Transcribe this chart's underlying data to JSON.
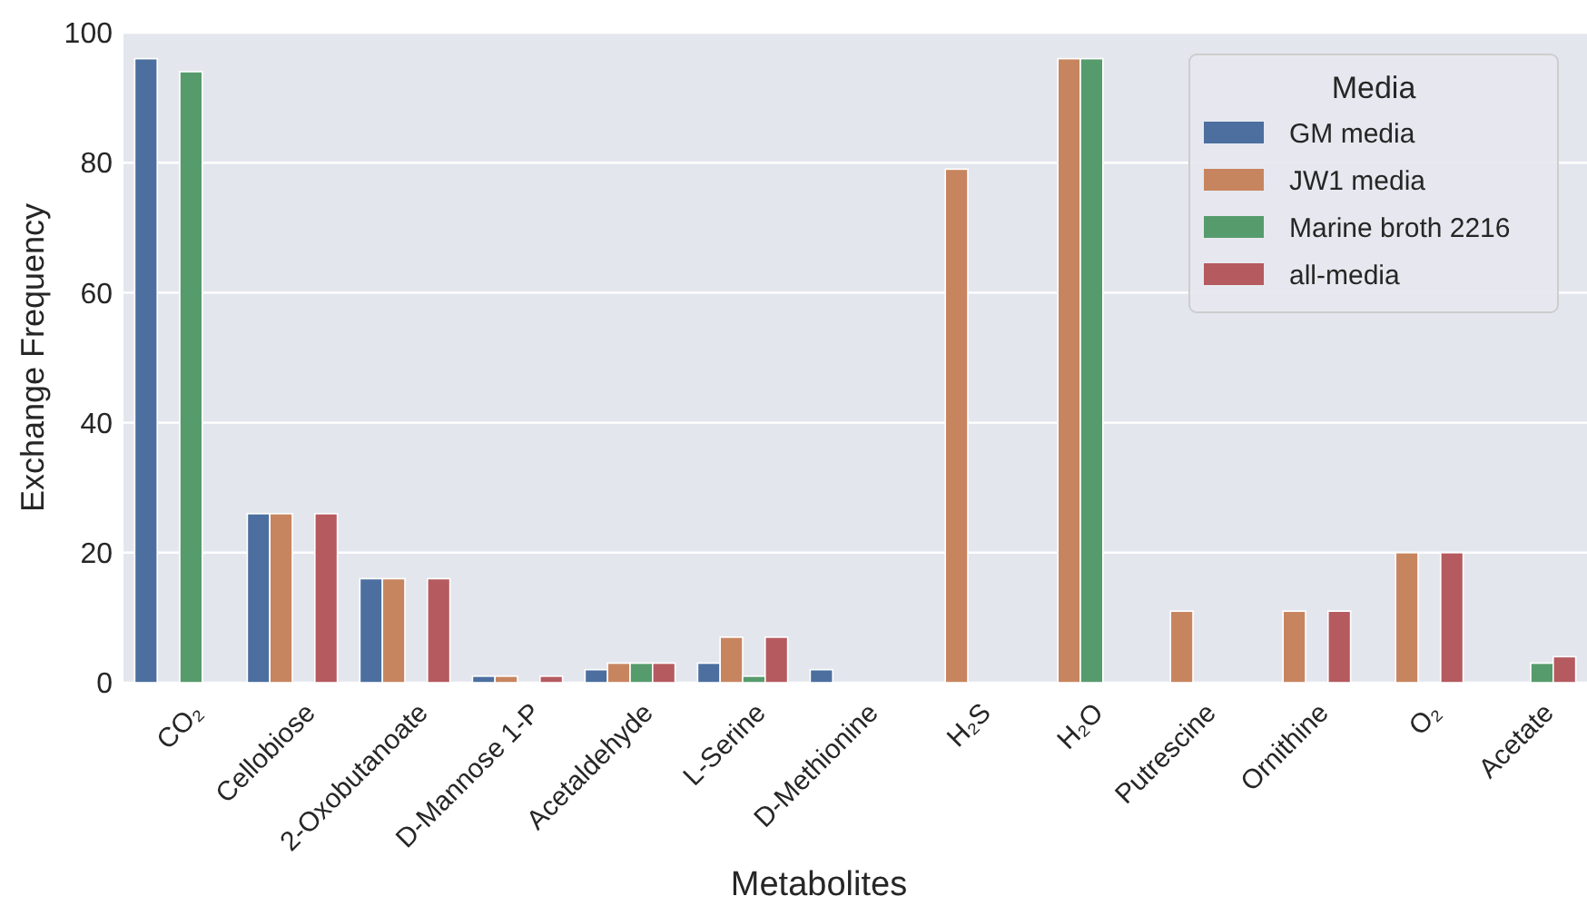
{
  "chart_data": {
    "type": "bar",
    "xlabel": "Metabolites",
    "ylabel": "Exchange Frequency",
    "legend_title": "Media",
    "categories": [
      "CO₂",
      "Cellobiose",
      "2-Oxobutanoate",
      "D-Mannose 1-P",
      "Acetaldehyde",
      "L-Serine",
      "D-Methionine",
      "H₂S",
      "H₂O",
      "Putrescine",
      "Ornithine",
      "O₂",
      "Acetate"
    ],
    "series": [
      {
        "name": "GM media",
        "color": "#4c6fa0",
        "values": [
          96,
          26,
          16,
          1,
          2,
          3,
          2,
          null,
          null,
          null,
          null,
          null,
          null
        ]
      },
      {
        "name": "JW1 media",
        "color": "#c7855f",
        "values": [
          null,
          26,
          16,
          1,
          3,
          7,
          null,
          79,
          96,
          11,
          11,
          20,
          null
        ]
      },
      {
        "name": "Marine broth 2216",
        "color": "#569b6c",
        "values": [
          94,
          null,
          null,
          null,
          3,
          1,
          null,
          null,
          96,
          null,
          null,
          null,
          3
        ]
      },
      {
        "name": "all-media",
        "color": "#b55a5f",
        "values": [
          null,
          26,
          16,
          1,
          3,
          7,
          null,
          null,
          null,
          null,
          11,
          20,
          4
        ]
      }
    ],
    "ylim": [
      0,
      100
    ],
    "yticks": [
      0,
      20,
      40,
      60,
      80,
      100
    ],
    "grid": "y",
    "legend": "top right"
  }
}
